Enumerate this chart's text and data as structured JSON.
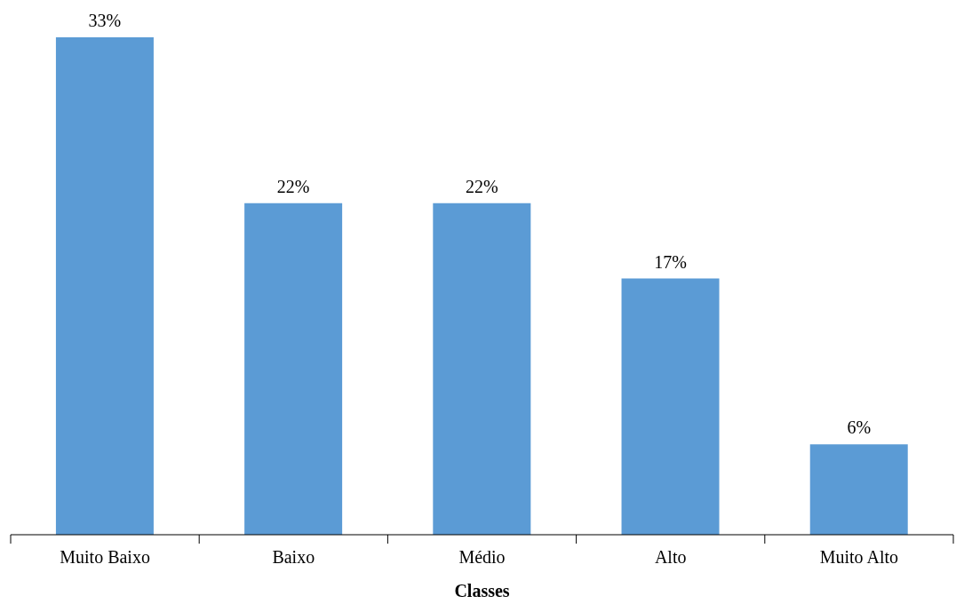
{
  "chart_data": {
    "type": "bar",
    "xlabel": "Classes",
    "categories": [
      "Muito Baixo",
      "Baixo",
      "Médio",
      "Alto",
      "Muito Alto"
    ],
    "values": [
      33,
      22,
      22,
      17,
      6
    ],
    "value_labels": [
      "33%",
      "22%",
      "22%",
      "17%",
      "6%"
    ],
    "color": "#5b9bd5"
  }
}
